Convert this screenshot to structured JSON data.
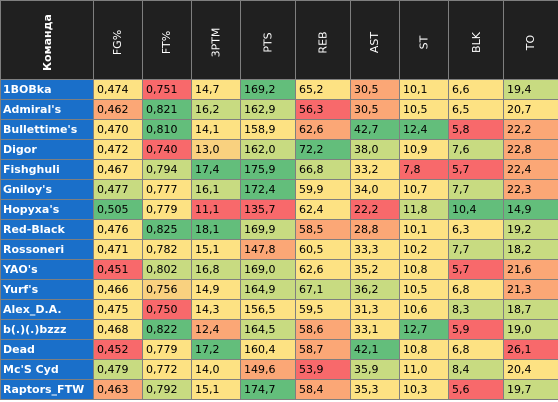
{
  "headers": [
    "Команда",
    "FG%",
    "FT%",
    "3PTM",
    "PTS",
    "REB",
    "AST",
    "ST",
    "BLK",
    "TO"
  ],
  "colors": {
    "r": "#f8696b",
    "o": "#fba776",
    "y": "#fde283",
    "l": "#c8db81",
    "g": "#63be7b",
    "p": "#f9d17f",
    "m": "#a4d07f"
  },
  "rows": [
    {
      "team": "1BOBka",
      "vals": [
        "0,474",
        "0,751",
        "14,7",
        "169,2",
        "65,2",
        "30,5",
        "10,1",
        "6,6",
        "19,4"
      ],
      "c": [
        "y",
        "r",
        "y",
        "g",
        "y",
        "o",
        "y",
        "y",
        "l"
      ]
    },
    {
      "team": "Admiral's",
      "vals": [
        "0,462",
        "0,821",
        "16,2",
        "162,9",
        "56,3",
        "30,5",
        "10,5",
        "6,5",
        "20,7"
      ],
      "c": [
        "o",
        "g",
        "l",
        "l",
        "r",
        "o",
        "y",
        "y",
        "y"
      ]
    },
    {
      "team": "Bullettime's",
      "vals": [
        "0,470",
        "0,810",
        "14,1",
        "158,9",
        "62,6",
        "42,7",
        "12,4",
        "5,8",
        "22,2"
      ],
      "c": [
        "y",
        "g",
        "y",
        "y",
        "o",
        "g",
        "g",
        "r",
        "o"
      ]
    },
    {
      "team": "Digor",
      "vals": [
        "0,472",
        "0,740",
        "13,0",
        "162,0",
        "72,2",
        "38,0",
        "10,9",
        "7,6",
        "22,8"
      ],
      "c": [
        "y",
        "r",
        "p",
        "l",
        "g",
        "l",
        "y",
        "l",
        "o"
      ]
    },
    {
      "team": "Fishghuli",
      "vals": [
        "0,467",
        "0,794",
        "17,4",
        "175,9",
        "66,8",
        "33,2",
        "7,8",
        "5,7",
        "22,4"
      ],
      "c": [
        "y",
        "l",
        "g",
        "g",
        "l",
        "y",
        "r",
        "r",
        "o"
      ]
    },
    {
      "team": "Gniloy's",
      "vals": [
        "0,477",
        "0,777",
        "16,1",
        "172,4",
        "59,9",
        "34,0",
        "10,7",
        "7,7",
        "22,3"
      ],
      "c": [
        "l",
        "y",
        "l",
        "g",
        "y",
        "y",
        "y",
        "l",
        "o"
      ]
    },
    {
      "team": "Нopyxa's",
      "vals": [
        "0,505",
        "0,779",
        "11,1",
        "135,7",
        "62,4",
        "22,2",
        "11,8",
        "10,4",
        "14,9"
      ],
      "c": [
        "g",
        "y",
        "r",
        "r",
        "y",
        "r",
        "l",
        "g",
        "g"
      ]
    },
    {
      "team": "Red-Black",
      "vals": [
        "0,476",
        "0,825",
        "18,1",
        "169,9",
        "58,5",
        "28,8",
        "10,1",
        "6,3",
        "19,2"
      ],
      "c": [
        "y",
        "g",
        "g",
        "l",
        "o",
        "o",
        "y",
        "y",
        "l"
      ]
    },
    {
      "team": "Rossoneri",
      "vals": [
        "0,471",
        "0,782",
        "15,1",
        "147,8",
        "60,5",
        "33,3",
        "10,2",
        "7,7",
        "18,2"
      ],
      "c": [
        "y",
        "y",
        "y",
        "o",
        "y",
        "y",
        "y",
        "l",
        "l"
      ]
    },
    {
      "team": "YAO's",
      "vals": [
        "0,451",
        "0,802",
        "16,8",
        "169,0",
        "62,6",
        "35,2",
        "10,8",
        "5,7",
        "21,6"
      ],
      "c": [
        "r",
        "l",
        "l",
        "l",
        "y",
        "y",
        "y",
        "r",
        "o"
      ]
    },
    {
      "team": "Yurf's",
      "vals": [
        "0,466",
        "0,756",
        "14,9",
        "164,9",
        "67,1",
        "36,2",
        "10,5",
        "6,8",
        "21,3"
      ],
      "c": [
        "y",
        "p",
        "y",
        "l",
        "l",
        "l",
        "y",
        "y",
        "o"
      ]
    },
    {
      "team": "Alex_D.A.",
      "vals": [
        "0,475",
        "0,750",
        "14,3",
        "156,5",
        "59,5",
        "31,3",
        "10,6",
        "8,3",
        "18,7"
      ],
      "c": [
        "y",
        "r",
        "y",
        "y",
        "y",
        "y",
        "y",
        "l",
        "l"
      ]
    },
    {
      "team": "b(.)(.)bzzz",
      "vals": [
        "0,468",
        "0,822",
        "12,4",
        "164,5",
        "58,6",
        "33,1",
        "12,7",
        "5,9",
        "19,0"
      ],
      "c": [
        "y",
        "g",
        "o",
        "l",
        "o",
        "y",
        "g",
        "r",
        "l"
      ]
    },
    {
      "team": "Dead",
      "vals": [
        "0,452",
        "0,779",
        "17,2",
        "160,4",
        "58,7",
        "42,1",
        "10,8",
        "6,8",
        "26,1"
      ],
      "c": [
        "r",
        "y",
        "g",
        "y",
        "o",
        "g",
        "y",
        "y",
        "r"
      ]
    },
    {
      "team": "Mc'S Cyd",
      "vals": [
        "0,479",
        "0,772",
        "14,0",
        "149,6",
        "53,9",
        "35,9",
        "11,0",
        "8,4",
        "20,4"
      ],
      "c": [
        "l",
        "y",
        "y",
        "o",
        "r",
        "l",
        "y",
        "l",
        "y"
      ]
    },
    {
      "team": "Raptors_FTW",
      "vals": [
        "0,463",
        "0,792",
        "15,1",
        "174,7",
        "58,4",
        "35,3",
        "10,3",
        "5,6",
        "19,7"
      ],
      "c": [
        "o",
        "l",
        "y",
        "g",
        "o",
        "y",
        "y",
        "r",
        "l"
      ]
    }
  ]
}
